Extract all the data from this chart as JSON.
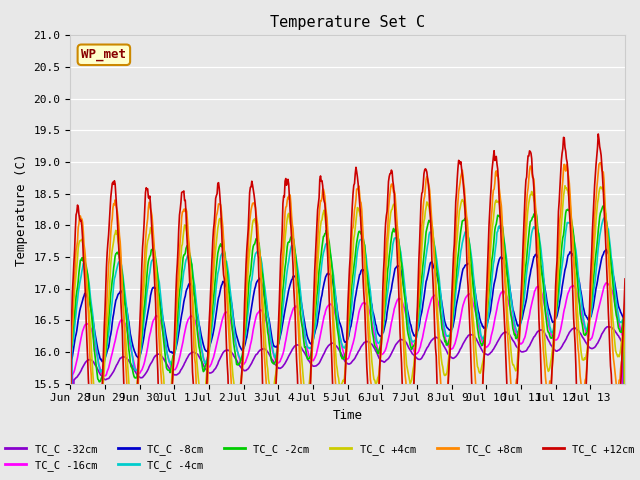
{
  "title": "Temperature Set C",
  "xlabel": "Time",
  "ylabel": "Temperature (C)",
  "ylim": [
    15.5,
    21.0
  ],
  "plot_bg_color": "#e8e8e8",
  "legend_box_label": "WP_met",
  "legend_box_color": "#ffffcc",
  "legend_box_edge_color": "#cc8800",
  "series": [
    {
      "label": "TC_C -32cm",
      "color": "#8800cc"
    },
    {
      "label": "TC_C -16cm",
      "color": "#ff00ff"
    },
    {
      "label": "TC_C -8cm",
      "color": "#0000cc"
    },
    {
      "label": "TC_C -4cm",
      "color": "#00cccc"
    },
    {
      "label": "TC_C -2cm",
      "color": "#00cc00"
    },
    {
      "label": "TC_C +4cm",
      "color": "#cccc00"
    },
    {
      "label": "TC_C +8cm",
      "color": "#ff8800"
    },
    {
      "label": "TC_C +12cm",
      "color": "#cc0000"
    }
  ],
  "xtick_labels": [
    "Jun 28",
    "Jun 29",
    "Jun 30",
    "Jul 1",
    "Jul 2",
    "Jul 3",
    "Jul 4",
    "Jul 5",
    "Jul 6",
    "Jul 7",
    "Jul 8",
    "Jul 9",
    "Jul 10",
    "Jul 11",
    "Jul 12",
    "Jul 13"
  ],
  "n_days": 16
}
